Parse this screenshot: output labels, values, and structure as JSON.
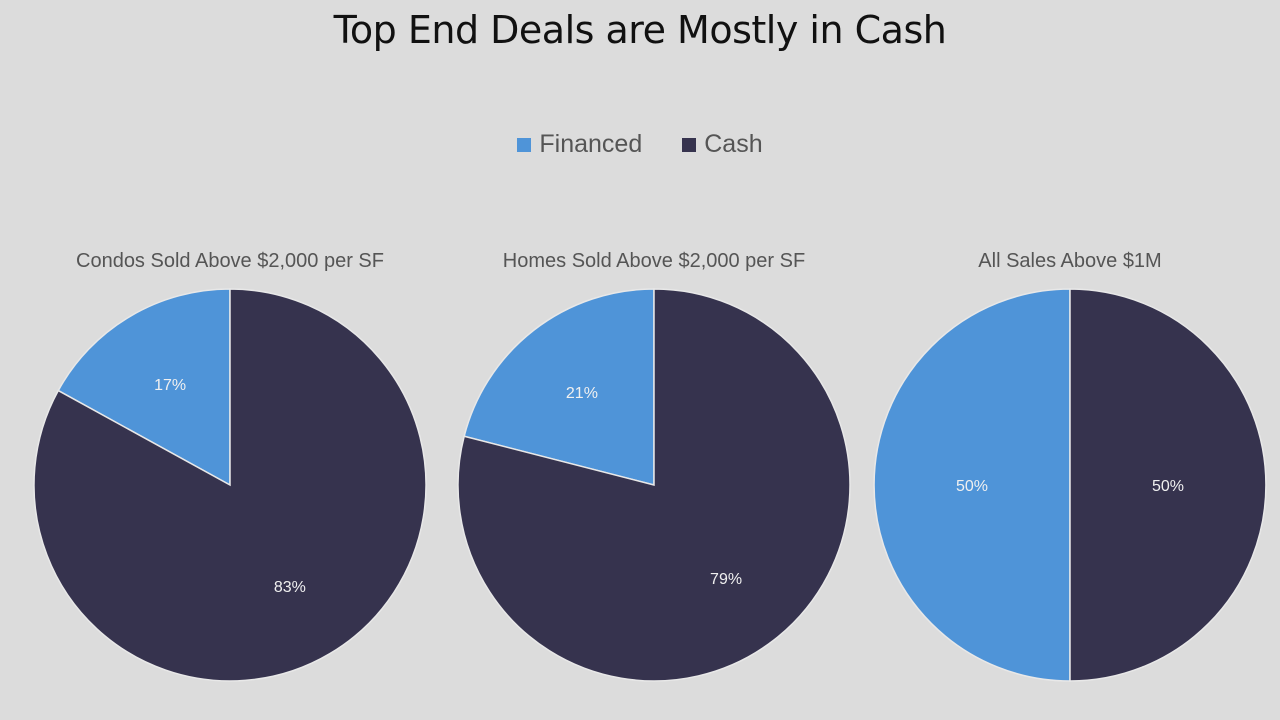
{
  "page": {
    "title": "Top End Deals are Mostly in Cash"
  },
  "legend": {
    "items": [
      {
        "label": "Financed",
        "color": "#4f94d8"
      },
      {
        "label": "Cash",
        "color": "#36334e"
      }
    ]
  },
  "chart_data": [
    {
      "type": "pie",
      "title": "Condos Sold Above $2,000 per SF",
      "slices": [
        {
          "name": "Financed",
          "value": 17,
          "label": "17%",
          "color": "#4f94d8"
        },
        {
          "name": "Cash",
          "value": 83,
          "label": "83%",
          "color": "#36334e"
        }
      ]
    },
    {
      "type": "pie",
      "title": "Homes Sold Above $2,000 per SF",
      "slices": [
        {
          "name": "Financed",
          "value": 21,
          "label": "21%",
          "color": "#4f94d8"
        },
        {
          "name": "Cash",
          "value": 79,
          "label": "79%",
          "color": "#36334e"
        }
      ]
    },
    {
      "type": "pie",
      "title": "All Sales Above $1M",
      "slices": [
        {
          "name": "Financed",
          "value": 50,
          "label": "50%",
          "color": "#4f94d8"
        },
        {
          "name": "Cash",
          "value": 50,
          "label": "50%",
          "color": "#36334e"
        }
      ]
    }
  ]
}
